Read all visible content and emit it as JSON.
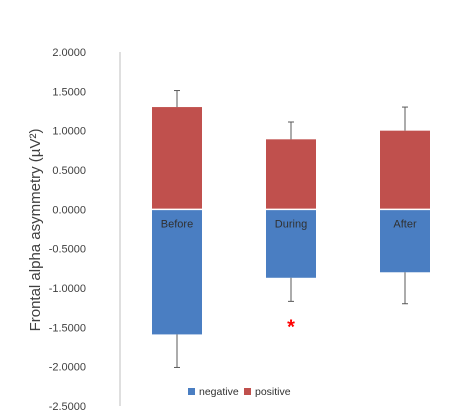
{
  "chart_data": {
    "type": "bar",
    "stacked": true,
    "categories": [
      "Before",
      "During",
      "After"
    ],
    "series": [
      {
        "name": "negative",
        "color": "#4A7EC2",
        "values": [
          -1.59,
          -0.87,
          -0.8
        ],
        "error": [
          0.42,
          0.3,
          0.4
        ]
      },
      {
        "name": "positive",
        "color": "#C0504D",
        "values": [
          1.3,
          0.89,
          1.0
        ],
        "error": [
          0.21,
          0.22,
          0.3
        ]
      }
    ],
    "ylabel": "Frontal alpha asymmetry  (µV²)",
    "ylim": [
      -2.5,
      2.0
    ],
    "yticks": [
      "2.0000",
      "1.5000",
      "1.0000",
      "0.5000",
      "0.0000",
      "-0.5000",
      "-1.0000",
      "-1.5000",
      "-2.0000",
      "-2.5000"
    ],
    "ytick_values": [
      2.0,
      1.5,
      1.0,
      0.5,
      0.0,
      -0.5,
      -1.0,
      -1.5,
      -2.0,
      -2.5
    ],
    "grid": false,
    "legend_position": "bottom",
    "annotations": [
      {
        "text": "*",
        "category": "During",
        "y": -1.45,
        "color": "#FF0000"
      }
    ]
  }
}
